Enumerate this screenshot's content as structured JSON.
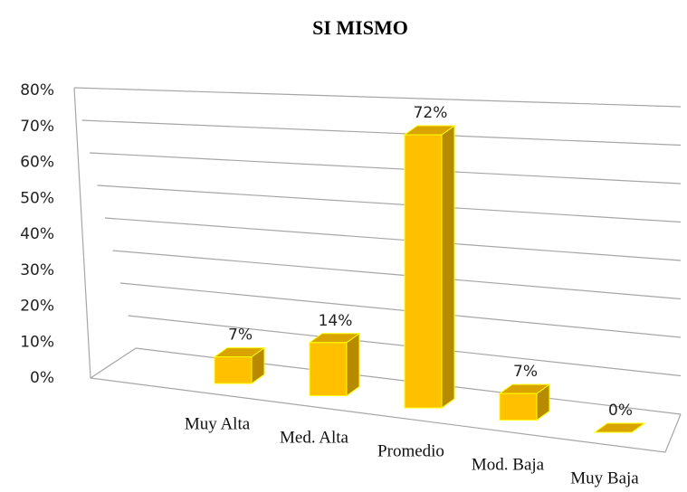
{
  "chart_data": {
    "type": "bar3d",
    "title": "SI MISMO",
    "categories": [
      "Muy Alta",
      "Med. Alta",
      "Promedio",
      "Mod. Baja",
      "Muy Baja"
    ],
    "values": [
      7,
      14,
      72,
      7,
      0
    ],
    "value_labels": [
      "7%",
      "14%",
      "72%",
      "7%",
      "0%"
    ],
    "color": "#ffc000",
    "ylim": [
      0,
      80
    ],
    "yticks": [
      {
        "value": 0,
        "label": "0%"
      },
      {
        "value": 10,
        "label": "10%"
      },
      {
        "value": 20,
        "label": "20%"
      },
      {
        "value": 30,
        "label": "30%"
      },
      {
        "value": 40,
        "label": "40%"
      },
      {
        "value": 50,
        "label": "50%"
      },
      {
        "value": 60,
        "label": "60%"
      },
      {
        "value": 70,
        "label": "70%"
      },
      {
        "value": 80,
        "label": "80%"
      }
    ],
    "grid": true
  }
}
